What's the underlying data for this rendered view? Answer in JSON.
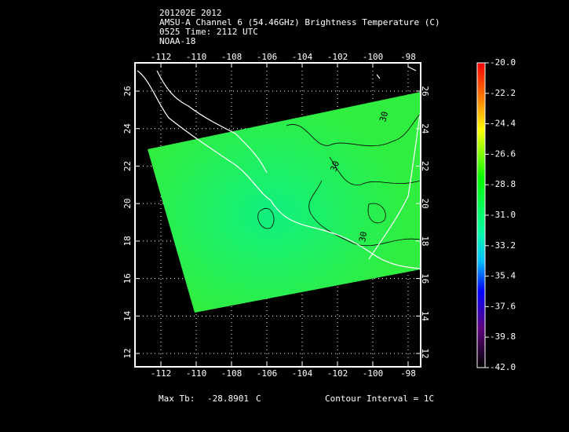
{
  "header": {
    "lines": [
      "201202E 2012",
      "AMSU-A Channel 6 (54.46GHz) Brightness Temperature (C)",
      "0525 Time: 2112 UTC",
      "NOAA-18"
    ]
  },
  "map": {
    "lon_ticks": [
      -112,
      -110,
      -108,
      -106,
      -104,
      -102,
      -100,
      -98
    ],
    "lat_ticks": [
      26,
      24,
      22,
      20,
      18,
      16,
      14,
      12
    ],
    "contour_labels": [
      "30",
      "30",
      "30"
    ]
  },
  "colorbar": {
    "ticks": [
      {
        "value": -20,
        "label": "-20.0"
      },
      {
        "value": -22.2,
        "label": "-22.2"
      },
      {
        "value": -24.4,
        "label": "-24.4"
      },
      {
        "value": -26.6,
        "label": "-26.6"
      },
      {
        "value": -28.8,
        "label": "-28.8"
      },
      {
        "value": -31,
        "label": "-31.0"
      },
      {
        "value": -33.2,
        "label": "-33.2"
      },
      {
        "value": -35.4,
        "label": "-35.4"
      },
      {
        "value": -37.6,
        "label": "-37.6"
      },
      {
        "value": -39.8,
        "label": "-39.8"
      },
      {
        "value": -42,
        "label": "-42.0"
      }
    ]
  },
  "footer": {
    "max_label": "Max Tb:",
    "max_value": "-28.8901",
    "unit": "C",
    "contour_interval": "Contour Interval = 1C"
  }
}
